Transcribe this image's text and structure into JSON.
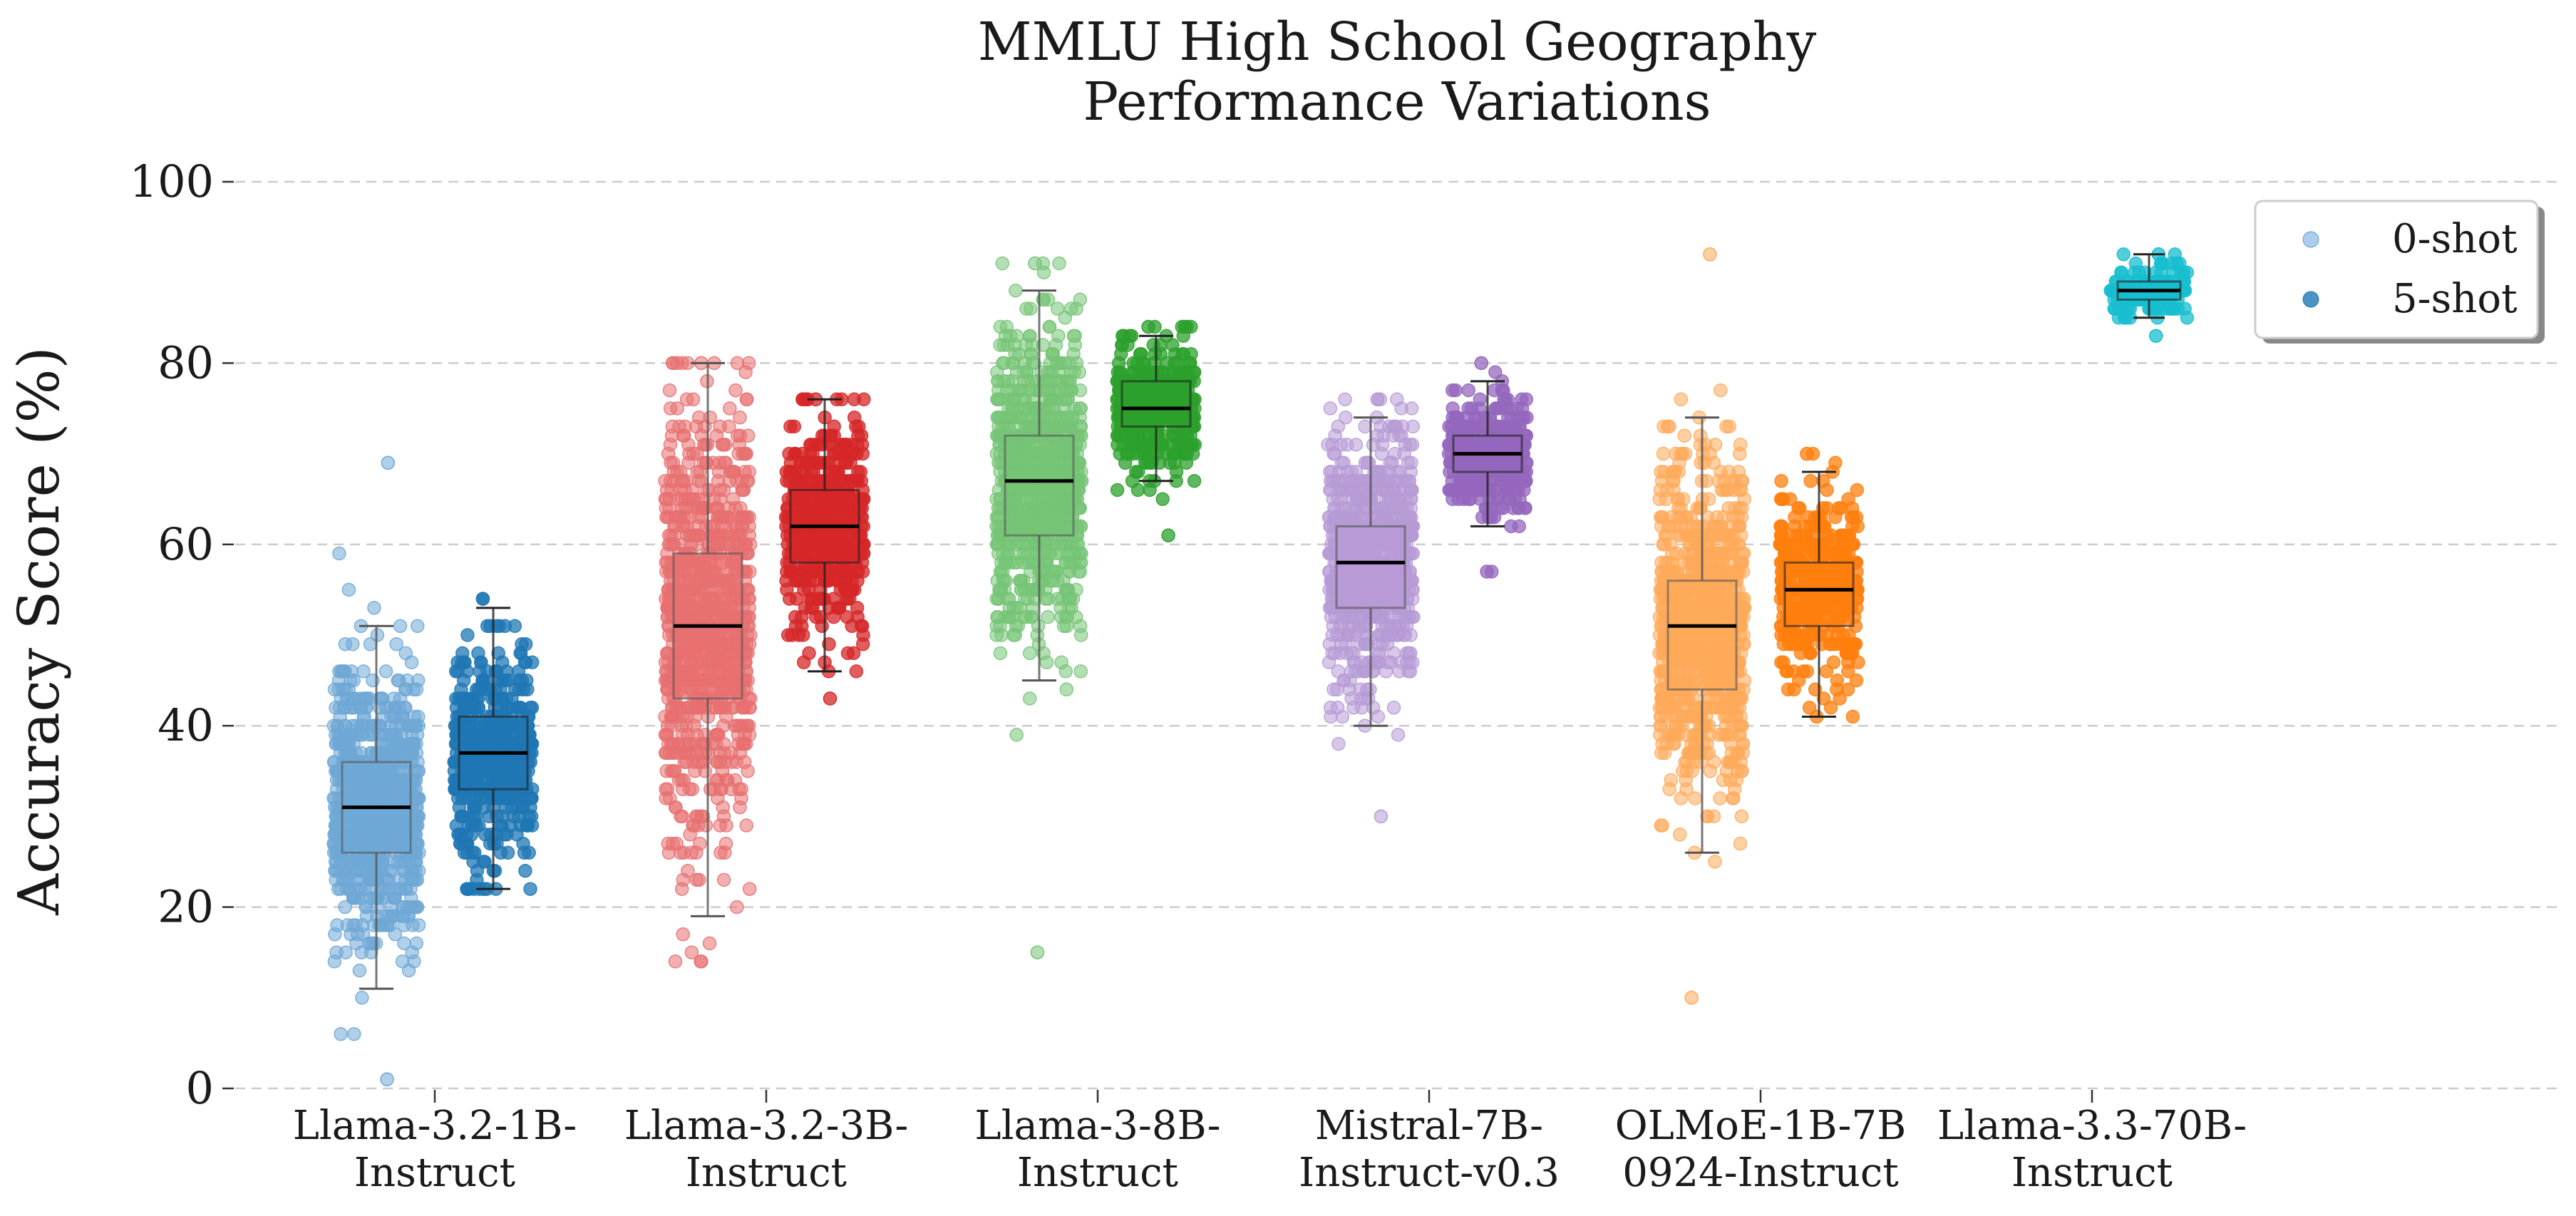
{
  "chart_data": {
    "type": "box-strip",
    "title": [
      "MMLU High School Geography",
      "Performance Variations"
    ],
    "ylabel": "Accuracy Score (%)",
    "xlabel": "",
    "ylim": [
      0,
      100
    ],
    "yticks": [
      0,
      20,
      40,
      60,
      80,
      100
    ],
    "grid": "horizontal dashed",
    "legend": {
      "placement": "top-right",
      "entries": [
        {
          "label": "0-shot",
          "color": "#5a9ed6",
          "alpha": 0.5
        },
        {
          "label": "5-shot",
          "color": "#1f77b4",
          "alpha": 0.8
        }
      ]
    },
    "categories": [
      {
        "label": [
          "Llama-3.2-1B-",
          "Instruct"
        ]
      },
      {
        "label": [
          "Llama-3.2-3B-",
          "Instruct"
        ]
      },
      {
        "label": [
          "Llama-3-8B-",
          "Instruct"
        ]
      },
      {
        "label": [
          "Mistral-7B-",
          "Instruct-v0.3"
        ]
      },
      {
        "label": [
          "OLMoE-1B-7B",
          "0924-Instruct"
        ]
      },
      {
        "label": [
          "Llama-3.3-70B-",
          "Instruct"
        ]
      }
    ],
    "series": [
      {
        "model": "Llama-3.2-1B-Instruct",
        "shot": "0-shot",
        "color": "#6fa8d6",
        "box": {
          "whislo": 11,
          "q1": 26,
          "med": 31,
          "q3": 36,
          "whishi": 51
        },
        "points": {
          "count": 900,
          "min": 1,
          "max": 69
        }
      },
      {
        "model": "Llama-3.2-1B-Instruct",
        "shot": "5-shot",
        "color": "#1f77b4",
        "box": {
          "whislo": 22,
          "q1": 33,
          "med": 37,
          "q3": 41,
          "whishi": 53
        },
        "points": {
          "count": 500,
          "min": 22,
          "max": 54
        }
      },
      {
        "model": "Llama-3.2-3B-Instruct",
        "shot": "0-shot",
        "color": "#e87070",
        "box": {
          "whislo": 19,
          "q1": 43,
          "med": 51,
          "q3": 59,
          "whishi": 80
        },
        "points": {
          "count": 900,
          "min": 14,
          "max": 80
        }
      },
      {
        "model": "Llama-3.2-3B-Instruct",
        "shot": "5-shot",
        "color": "#d62728",
        "box": {
          "whislo": 46,
          "q1": 58,
          "med": 62,
          "q3": 66,
          "whishi": 76
        },
        "points": {
          "count": 500,
          "min": 43,
          "max": 76
        }
      },
      {
        "model": "Llama-3-8B-Instruct",
        "shot": "0-shot",
        "color": "#76c476",
        "box": {
          "whislo": 45,
          "q1": 61,
          "med": 67,
          "q3": 72,
          "whishi": 88
        },
        "points": {
          "count": 900,
          "min": 15,
          "max": 91
        }
      },
      {
        "model": "Llama-3-8B-Instruct",
        "shot": "5-shot",
        "color": "#2ca02c",
        "box": {
          "whislo": 67,
          "q1": 73,
          "med": 75,
          "q3": 78,
          "whishi": 83
        },
        "points": {
          "count": 400,
          "min": 61,
          "max": 84
        }
      },
      {
        "model": "Mistral-7B-Instruct-v0.3",
        "shot": "0-shot",
        "color": "#b79ad6",
        "box": {
          "whislo": 40,
          "q1": 53,
          "med": 58,
          "q3": 62,
          "whishi": 74
        },
        "points": {
          "count": 800,
          "min": 30,
          "max": 76
        }
      },
      {
        "model": "Mistral-7B-Instruct-v0.3",
        "shot": "5-shot",
        "color": "#9467bd",
        "box": {
          "whislo": 62,
          "q1": 68,
          "med": 70,
          "q3": 72,
          "whishi": 78
        },
        "points": {
          "count": 400,
          "min": 57,
          "max": 80
        }
      },
      {
        "model": "OLMoE-1B-7B-0924-Instruct",
        "shot": "0-shot",
        "color": "#ffaa5a",
        "box": {
          "whislo": 26,
          "q1": 44,
          "med": 51,
          "q3": 56,
          "whishi": 74
        },
        "points": {
          "count": 900,
          "min": 10,
          "max": 92
        }
      },
      {
        "model": "OLMoE-1B-7B-0924-Instruct",
        "shot": "5-shot",
        "color": "#ff7f0e",
        "box": {
          "whislo": 41,
          "q1": 51,
          "med": 55,
          "q3": 58,
          "whishi": 68
        },
        "points": {
          "count": 400,
          "min": 41,
          "max": 70
        }
      },
      {
        "model": "Llama-3.3-70B-Instruct",
        "shot": "5-shot",
        "color": "#17becf",
        "box": {
          "whislo": 85,
          "q1": 87,
          "med": 88,
          "q3": 89,
          "whishi": 92
        },
        "points": {
          "count": 120,
          "min": 83,
          "max": 92
        }
      }
    ]
  }
}
